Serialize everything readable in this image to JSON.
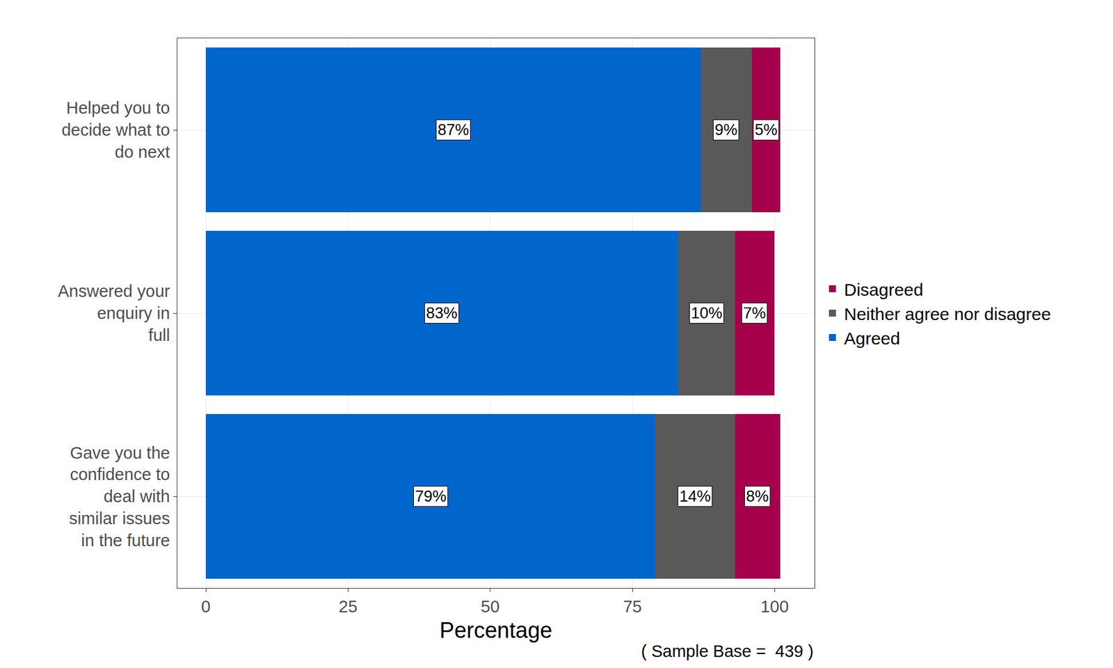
{
  "chart_data": {
    "type": "bar",
    "orientation": "horizontal",
    "stacked": true,
    "categories": [
      "Helped you to decide what to do next",
      "Answered your enquiry in full",
      "Gave you the confidence to deal with similar issues in the future"
    ],
    "series": [
      {
        "name": "Agreed",
        "color": "#0066cc",
        "values": [
          87,
          83,
          79
        ],
        "value_labels": [
          "87%",
          "83%",
          "79%"
        ]
      },
      {
        "name": "Neither agree nor disagree",
        "color": "#595959",
        "values": [
          9,
          10,
          14
        ],
        "value_labels": [
          "9%",
          "10%",
          "14%"
        ]
      },
      {
        "name": "Disagreed",
        "color": "#a6004d",
        "values": [
          5,
          7,
          8
        ],
        "value_labels": [
          "5%",
          "7%",
          "8%"
        ]
      }
    ],
    "x_label": "Percentage",
    "note": "( Sample Base =  439 )",
    "xlim": [
      -5,
      107
    ],
    "xticks": [
      0,
      25,
      50,
      75,
      100
    ],
    "grid": true,
    "legend": "right",
    "data_labels": true
  }
}
